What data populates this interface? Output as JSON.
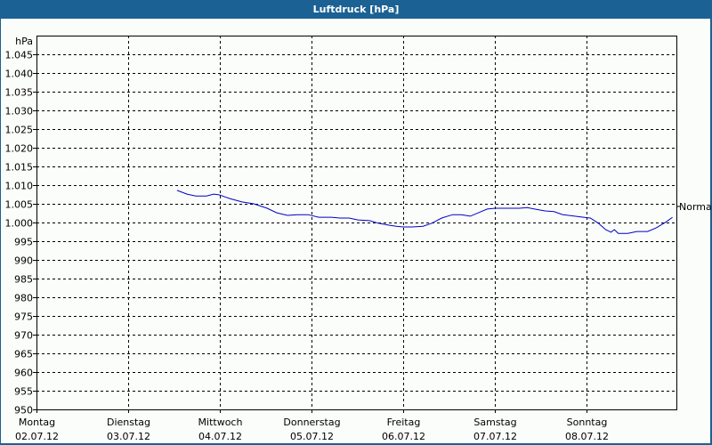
{
  "window": {
    "title": "Luftdruck [hPa]"
  },
  "colors": {
    "titlebar": "#1c6193",
    "background": "#fbfdfa",
    "series": "#0000c8",
    "grid": "#000000"
  },
  "chart_data": {
    "type": "line",
    "title": "Luftdruck [hPa]",
    "xlabel": "",
    "ylabel": "hPa",
    "ylim": [
      950,
      1050
    ],
    "y_ticks": [
      "1.045",
      "1.040",
      "1.035",
      "1.030",
      "1.025",
      "1.020",
      "1.015",
      "1.010",
      "1.005",
      "1.000",
      "995",
      "990",
      "985",
      "980",
      "975",
      "970",
      "965",
      "960",
      "955",
      "950"
    ],
    "y_tick_values": [
      1045,
      1040,
      1035,
      1030,
      1025,
      1020,
      1015,
      1010,
      1005,
      1000,
      995,
      990,
      985,
      980,
      975,
      970,
      965,
      960,
      955,
      950
    ],
    "x_ticks": [
      {
        "day": "Montag",
        "date": "02.07.12"
      },
      {
        "day": "Dienstag",
        "date": "03.07.12"
      },
      {
        "day": "Mittwoch",
        "date": "04.07.12"
      },
      {
        "day": "Donnerstag",
        "date": "05.07.12"
      },
      {
        "day": "Freitag",
        "date": "06.07.12"
      },
      {
        "day": "Samstag",
        "date": "07.07.12"
      },
      {
        "day": "Sonntag",
        "date": "08.07.12"
      }
    ],
    "xlim_hours": [
      0,
      168
    ],
    "grid": true,
    "annotation": {
      "label": "Normal",
      "value": 1004.3
    },
    "series": [
      {
        "name": "Luftdruck",
        "x_hours": [
          36.8,
          39.4,
          41.7,
          44.5,
          46.4,
          47.8,
          50.6,
          53.8,
          56.9,
          60.4,
          62.9,
          65.7,
          68.3,
          71.1,
          73.9,
          77.2,
          79.5,
          81.8,
          84.2,
          87.2,
          89.5,
          92.1,
          94.2,
          96.0,
          98.4,
          101.2,
          103.5,
          106.1,
          108.9,
          111.2,
          113.6,
          115.7,
          118.0,
          120.1,
          123.3,
          126.4,
          128.5,
          130.4,
          133.2,
          135.5,
          137.8,
          140.9,
          143.2,
          145.0,
          147.1,
          149.0,
          150.4,
          151.3,
          152.3,
          154.8,
          157.2,
          160.0,
          162.3,
          164.9,
          166.5
        ],
        "values": [
          1008.6,
          1007.6,
          1007.1,
          1007.1,
          1007.6,
          1007.4,
          1006.4,
          1005.5,
          1005.0,
          1003.8,
          1002.6,
          1001.9,
          1002.1,
          1002.1,
          1001.4,
          1001.4,
          1001.2,
          1001.2,
          1000.7,
          1000.5,
          999.8,
          999.3,
          999.0,
          998.8,
          998.8,
          999.0,
          999.8,
          1001.2,
          1002.1,
          1002.1,
          1001.7,
          1002.6,
          1003.6,
          1003.8,
          1003.8,
          1003.8,
          1004.0,
          1003.6,
          1003.1,
          1002.9,
          1002.1,
          1001.7,
          1001.4,
          1001.2,
          999.8,
          998.1,
          997.4,
          998.1,
          997.1,
          997.1,
          997.6,
          997.6,
          998.6,
          1000.2,
          1001.4
        ]
      }
    ]
  }
}
